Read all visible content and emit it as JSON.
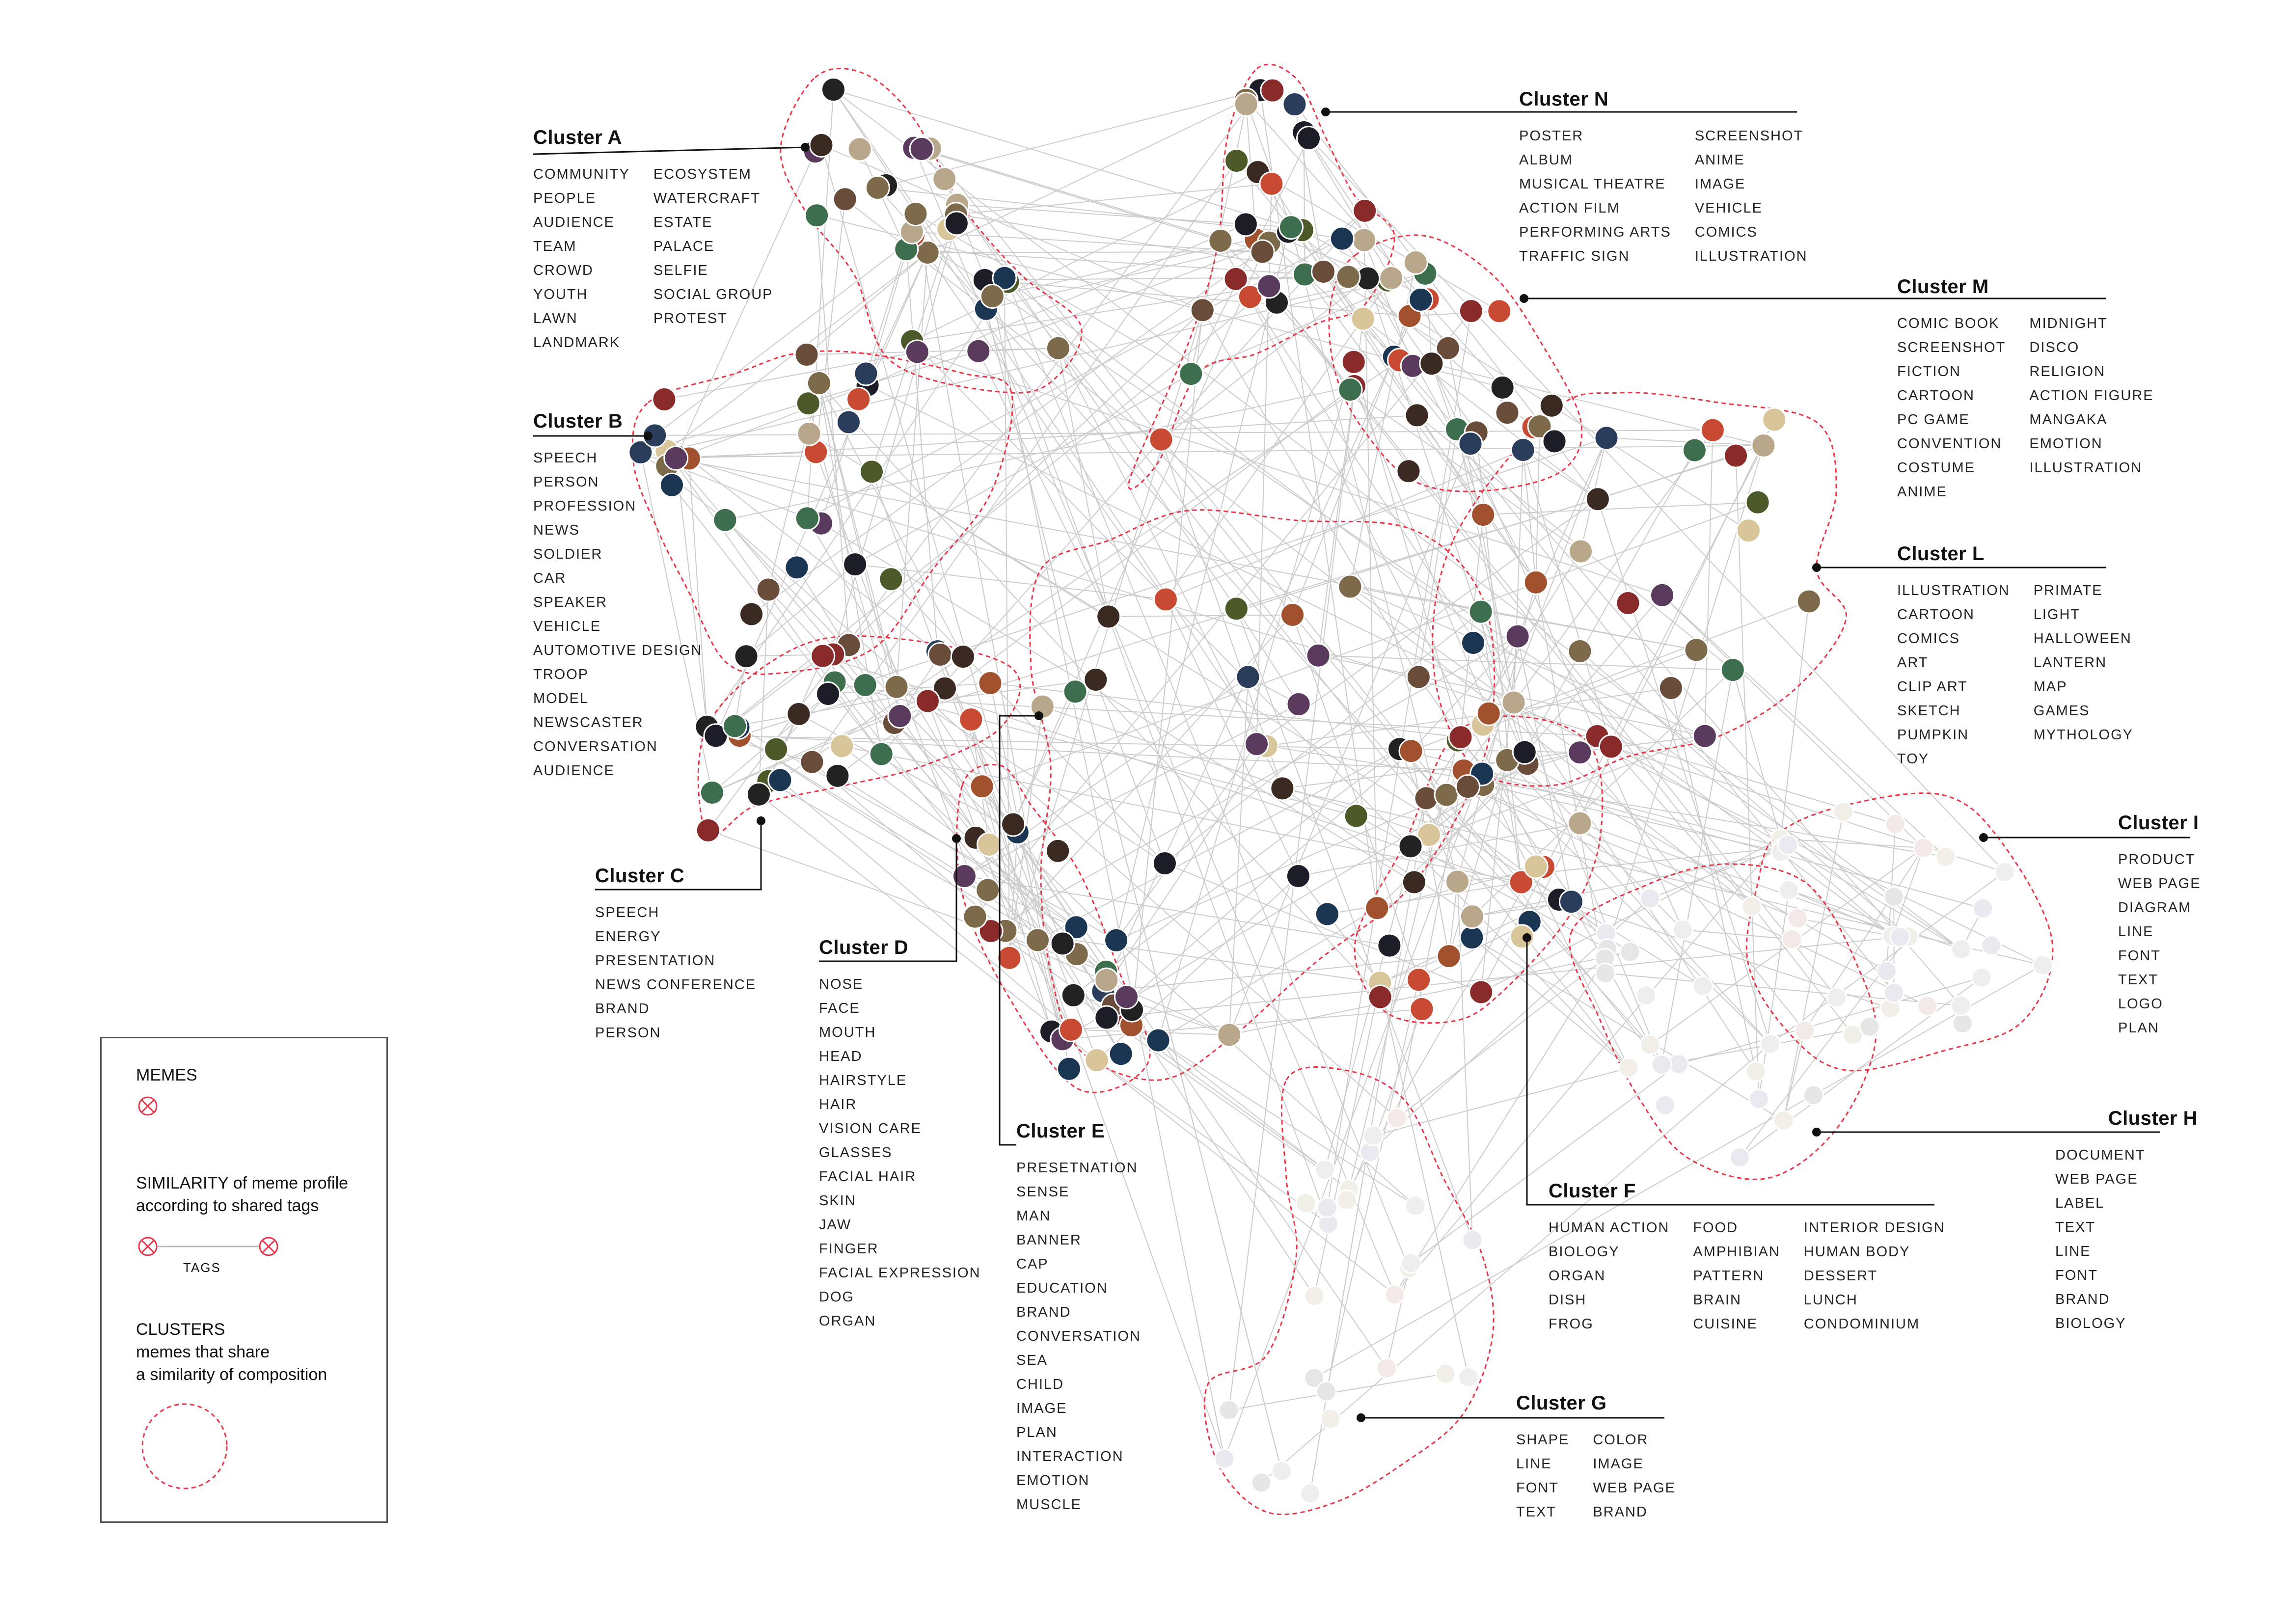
{
  "clusters": [
    {
      "id": "A",
      "title": "Cluster A",
      "columns": [
        [
          "COMMUNITY",
          "PEOPLE",
          "AUDIENCE",
          "TEAM",
          "CROWD",
          "YOUTH",
          "LAWN",
          "LANDMARK"
        ],
        [
          "ECOSYSTEM",
          "WATERCRAFT",
          "ESTATE",
          "PALACE",
          "SELFIE",
          "SOCIAL GROUP",
          "PROTEST"
        ]
      ]
    },
    {
      "id": "B",
      "title": "Cluster B",
      "columns": [
        [
          "SPEECH",
          "PERSON",
          "PROFESSION",
          "NEWS",
          "SOLDIER",
          "CAR",
          "SPEAKER",
          "VEHICLE",
          "AUTOMOTIVE DESIGN",
          "TROOP",
          "MODEL",
          "NEWSCASTER",
          "CONVERSATION",
          "AUDIENCE"
        ]
      ]
    },
    {
      "id": "C",
      "title": "Cluster C",
      "columns": [
        [
          "SPEECH",
          "ENERGY",
          "PRESENTATION",
          "NEWS CONFERENCE",
          "BRAND",
          "PERSON"
        ]
      ]
    },
    {
      "id": "D",
      "title": "Cluster D",
      "columns": [
        [
          "NOSE",
          "FACE",
          "MOUTH",
          "HEAD",
          "HAIRSTYLE",
          "HAIR",
          "VISION CARE",
          "GLASSES",
          "FACIAL HAIR",
          "SKIN",
          "JAW",
          "FINGER",
          "FACIAL EXPRESSION",
          "DOG",
          "ORGAN"
        ]
      ]
    },
    {
      "id": "E",
      "title": "Cluster E",
      "columns": [
        [
          "PRESETNATION",
          "SENSE",
          "MAN",
          "BANNER",
          "CAP",
          "EDUCATION",
          "BRAND",
          "CONVERSATION",
          "SEA",
          "CHILD",
          "IMAGE",
          "PLAN",
          "INTERACTION",
          "EMOTION",
          "MUSCLE"
        ]
      ]
    },
    {
      "id": "F",
      "title": "Cluster F",
      "columns": [
        [
          "HUMAN ACTION",
          "BIOLOGY",
          "ORGAN",
          "DISH",
          "FROG"
        ],
        [
          "FOOD",
          "AMPHIBIAN",
          "PATTERN",
          "BRAIN",
          "CUISINE"
        ],
        [
          "INTERIOR DESIGN",
          "HUMAN BODY",
          "DESSERT",
          "LUNCH",
          "CONDOMINIUM"
        ]
      ]
    },
    {
      "id": "G",
      "title": "Cluster G",
      "columns": [
        [
          "SHAPE",
          "LINE",
          "FONT",
          "TEXT"
        ],
        [
          "COLOR",
          "IMAGE",
          "WEB PAGE",
          "BRAND"
        ]
      ]
    },
    {
      "id": "H",
      "title": "Cluster H",
      "columns": [
        [
          "DOCUMENT",
          "WEB PAGE",
          "LABEL",
          "TEXT",
          "LINE",
          "FONT",
          "BRAND",
          "BIOLOGY"
        ]
      ]
    },
    {
      "id": "I",
      "title": "Cluster I",
      "columns": [
        [
          "PRODUCT",
          "WEB PAGE",
          "DIAGRAM",
          "LINE",
          "FONT",
          "TEXT",
          "LOGO",
          "PLAN"
        ]
      ]
    },
    {
      "id": "L",
      "title": "Cluster L",
      "columns": [
        [
          "ILLUSTRATION",
          "CARTOON",
          "COMICS",
          "ART",
          "CLIP ART",
          "SKETCH",
          "PUMPKIN",
          "TOY"
        ],
        [
          "PRIMATE",
          "LIGHT",
          "HALLOWEEN",
          "LANTERN",
          "MAP",
          "GAMES",
          "MYTHOLOGY"
        ]
      ]
    },
    {
      "id": "M",
      "title": "Cluster M",
      "columns": [
        [
          "COMIC BOOK",
          "SCREENSHOT",
          "FICTION",
          "CARTOON",
          "PC GAME",
          "CONVENTION",
          "COSTUME",
          "ANIME"
        ],
        [
          "MIDNIGHT",
          "DISCO",
          "RELIGION",
          "ACTION FIGURE",
          "MANGAKA",
          "EMOTION",
          "ILLUSTRATION"
        ]
      ]
    },
    {
      "id": "N",
      "title": "Cluster N",
      "columns": [
        [
          "POSTER",
          "ALBUM",
          "MUSICAL THEATRE",
          "ACTION FILM",
          "PERFORMING ARTS",
          "TRAFFIC SIGN"
        ],
        [
          "SCREENSHOT",
          "ANIME",
          "IMAGE",
          "VEHICLE",
          "COMICS",
          "ILLUSTRATION"
        ]
      ]
    }
  ],
  "legend": {
    "memes_label": "MEMES",
    "similarity_line1": "SIMILARITY of meme profile",
    "similarity_line2": "according to shared tags",
    "tags_label": "TAGS",
    "clusters_label": "CLUSTERS",
    "clusters_line1": "memes that share",
    "clusters_line2": "a similarity of composition"
  },
  "colors": {
    "cluster_outline": "#e8354a",
    "edge": "#cccccc",
    "leader": "#111111",
    "legend_mark": "#e8354a"
  }
}
